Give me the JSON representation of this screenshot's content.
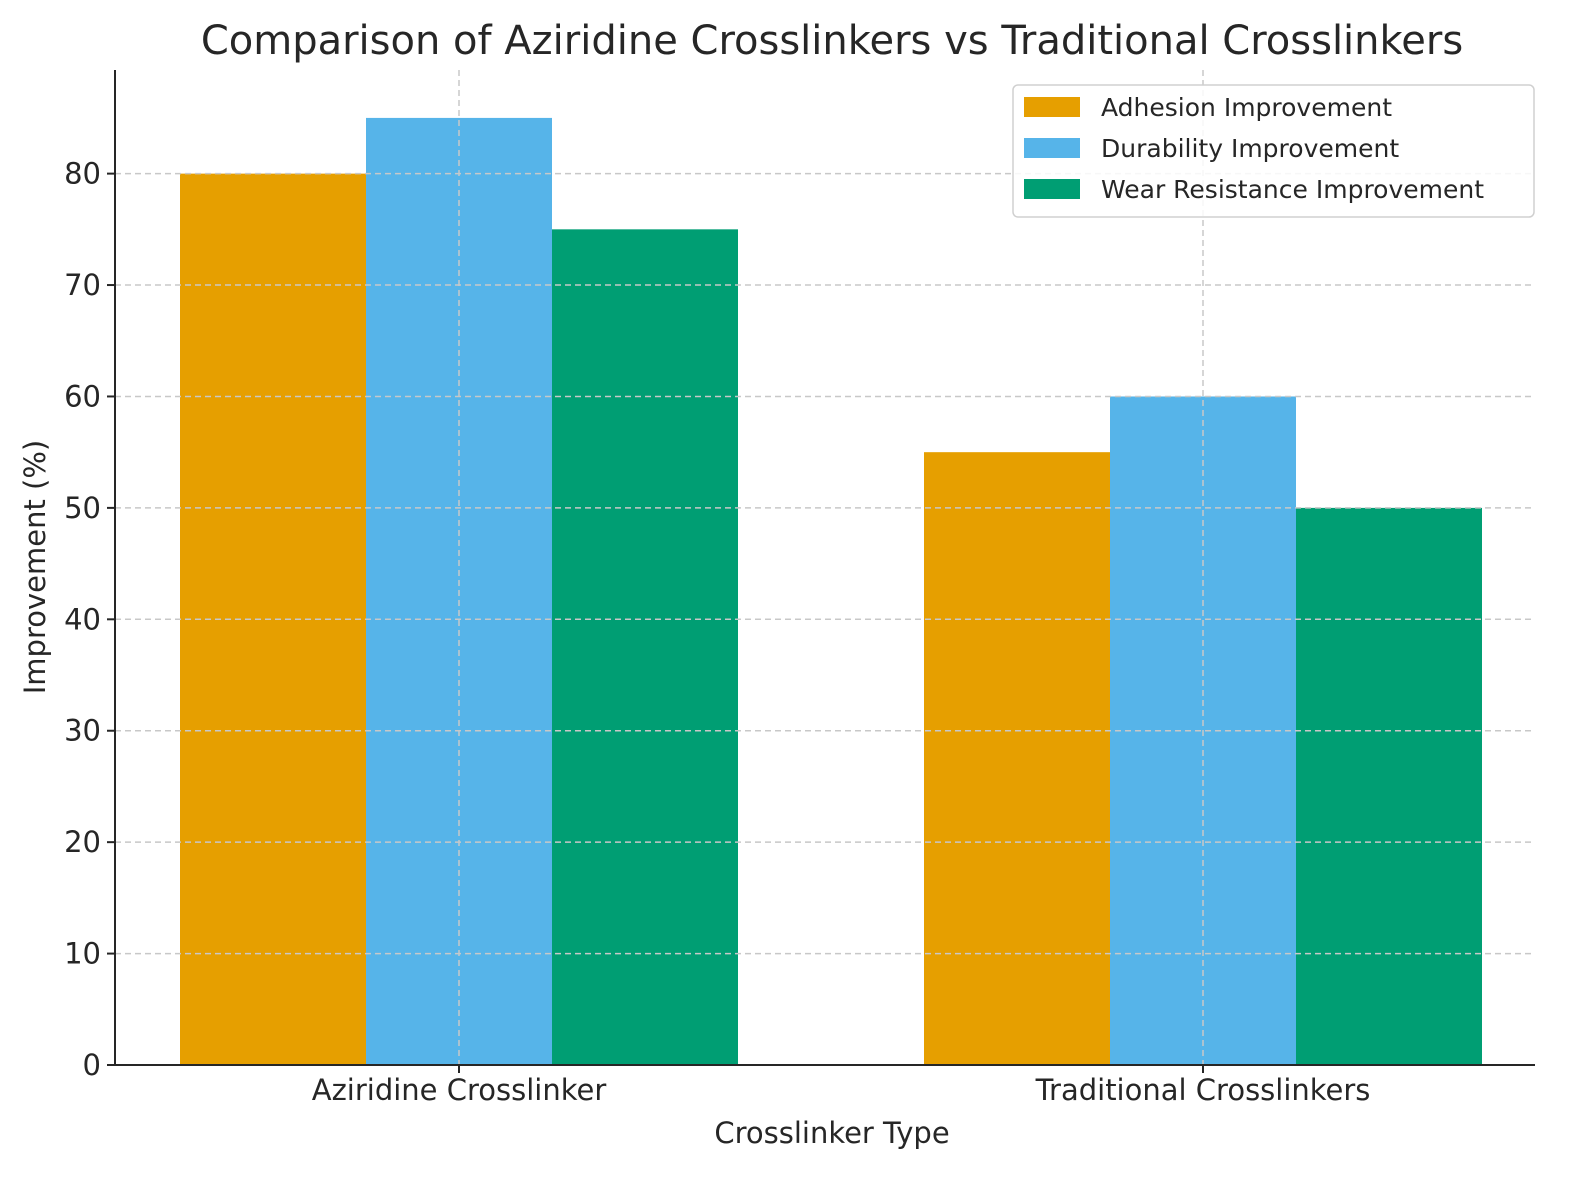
{
  "chart_data": {
    "type": "bar",
    "title": "Comparison of Aziridine Crosslinkers vs Traditional Crosslinkers",
    "xlabel": "Crosslinker Type",
    "ylabel": "Improvement (%)",
    "categories": [
      "Aziridine Crosslinker",
      "Traditional Crosslinkers"
    ],
    "series": [
      {
        "name": "Adhesion Improvement",
        "values": [
          80,
          55
        ],
        "color": "#E69F00"
      },
      {
        "name": "Durability Improvement",
        "values": [
          85,
          60
        ],
        "color": "#56B4E9"
      },
      {
        "name": "Wear Resistance Improvement",
        "values": [
          75,
          50
        ],
        "color": "#009E73"
      }
    ],
    "ylim": [
      0,
      89.3
    ],
    "yticks": [
      0,
      10,
      20,
      30,
      40,
      50,
      60,
      70,
      80
    ],
    "grid": true,
    "legend": "top-right"
  }
}
